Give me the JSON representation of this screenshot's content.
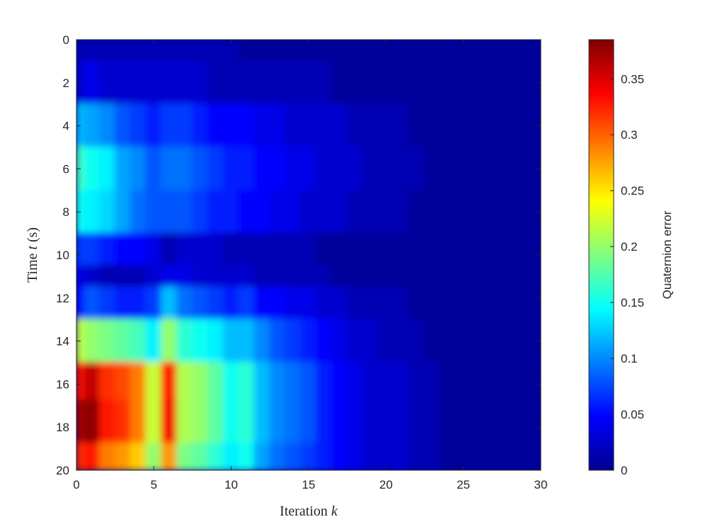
{
  "chart_data": {
    "type": "heatmap",
    "colormap": "jet",
    "title": "",
    "xlabel_text": "Iteration ",
    "xlabel_var": "k",
    "ylabel_text_pre": "Time ",
    "ylabel_var": "t",
    "ylabel_text_post": " (s)",
    "colorbar_label": "Quaternion error",
    "xlim": [
      0,
      30
    ],
    "ylim": [
      0,
      20
    ],
    "y_reversed": true,
    "clim": [
      0,
      0.385
    ],
    "x_ticks": [
      0,
      5,
      10,
      15,
      20,
      25,
      30
    ],
    "x_tick_labels": [
      "0",
      "5",
      "10",
      "15",
      "20",
      "25",
      "30"
    ],
    "y_ticks": [
      0,
      2,
      4,
      6,
      8,
      10,
      12,
      14,
      16,
      18,
      20
    ],
    "y_tick_labels": [
      "0",
      "2",
      "4",
      "6",
      "8",
      "10",
      "12",
      "14",
      "16",
      "18",
      "20"
    ],
    "colorbar_ticks": [
      0,
      0.05,
      0.1,
      0.15,
      0.2,
      0.25,
      0.3,
      0.35
    ],
    "colorbar_tick_labels": [
      "0",
      "0.05",
      "0.1",
      "0.15",
      "0.2",
      "0.25",
      "0.3",
      "0.35"
    ],
    "grid": false,
    "x": [
      0,
      1,
      2,
      3,
      4,
      5,
      6,
      7,
      8,
      9,
      10,
      11,
      12,
      13,
      14,
      15,
      16,
      17,
      18,
      19,
      20,
      21,
      22,
      23,
      24,
      25,
      26,
      27,
      28,
      29,
      30
    ],
    "y": [
      0,
      2,
      4,
      6,
      8,
      10,
      11,
      12,
      14,
      16,
      17.5,
      20
    ],
    "values": [
      [
        0.02,
        0.02,
        0.02,
        0.02,
        0.02,
        0.02,
        0.02,
        0.02,
        0.02,
        0.02,
        0.02,
        0.01,
        0.01,
        0.01,
        0.01,
        0.01,
        0.01,
        0.01,
        0.01,
        0.01,
        0.01,
        0.01,
        0.01,
        0.01,
        0.01,
        0.01,
        0.01,
        0.01,
        0.01,
        0.01,
        0.01
      ],
      [
        0.03,
        0.04,
        0.03,
        0.03,
        0.03,
        0.03,
        0.03,
        0.03,
        0.03,
        0.02,
        0.02,
        0.02,
        0.02,
        0.02,
        0.02,
        0.02,
        0.02,
        0.01,
        0.01,
        0.01,
        0.01,
        0.01,
        0.01,
        0.01,
        0.01,
        0.01,
        0.01,
        0.01,
        0.01,
        0.01,
        0.01
      ],
      [
        0.12,
        0.11,
        0.1,
        0.08,
        0.07,
        0.06,
        0.07,
        0.07,
        0.06,
        0.05,
        0.05,
        0.05,
        0.04,
        0.04,
        0.03,
        0.03,
        0.03,
        0.03,
        0.02,
        0.02,
        0.02,
        0.02,
        0.01,
        0.01,
        0.01,
        0.01,
        0.01,
        0.01,
        0.01,
        0.01,
        0.01
      ],
      [
        0.17,
        0.15,
        0.14,
        0.11,
        0.1,
        0.08,
        0.09,
        0.09,
        0.08,
        0.07,
        0.06,
        0.06,
        0.05,
        0.05,
        0.04,
        0.04,
        0.03,
        0.03,
        0.03,
        0.02,
        0.02,
        0.02,
        0.02,
        0.01,
        0.01,
        0.01,
        0.01,
        0.01,
        0.01,
        0.01,
        0.01
      ],
      [
        0.15,
        0.14,
        0.13,
        0.11,
        0.09,
        0.08,
        0.08,
        0.08,
        0.07,
        0.06,
        0.06,
        0.05,
        0.05,
        0.04,
        0.04,
        0.03,
        0.03,
        0.03,
        0.02,
        0.02,
        0.02,
        0.02,
        0.01,
        0.01,
        0.01,
        0.01,
        0.01,
        0.01,
        0.01,
        0.01,
        0.01
      ],
      [
        0.07,
        0.07,
        0.06,
        0.05,
        0.05,
        0.04,
        0.02,
        0.03,
        0.03,
        0.03,
        0.02,
        0.02,
        0.02,
        0.02,
        0.02,
        0.02,
        0.01,
        0.01,
        0.01,
        0.01,
        0.01,
        0.01,
        0.01,
        0.01,
        0.01,
        0.01,
        0.01,
        0.01,
        0.01,
        0.01,
        0.01
      ],
      [
        0.04,
        0.03,
        0.02,
        0.02,
        0.02,
        0.03,
        0.04,
        0.04,
        0.03,
        0.03,
        0.03,
        0.03,
        0.02,
        0.02,
        0.02,
        0.02,
        0.02,
        0.01,
        0.01,
        0.01,
        0.01,
        0.01,
        0.01,
        0.01,
        0.01,
        0.01,
        0.01,
        0.01,
        0.01,
        0.01,
        0.01
      ],
      [
        0.05,
        0.08,
        0.07,
        0.06,
        0.06,
        0.07,
        0.12,
        0.09,
        0.08,
        0.07,
        0.06,
        0.07,
        0.05,
        0.05,
        0.04,
        0.04,
        0.03,
        0.03,
        0.02,
        0.02,
        0.02,
        0.02,
        0.01,
        0.01,
        0.01,
        0.01,
        0.01,
        0.01,
        0.01,
        0.01,
        0.01
      ],
      [
        0.22,
        0.2,
        0.19,
        0.18,
        0.17,
        0.14,
        0.2,
        0.16,
        0.15,
        0.14,
        0.12,
        0.12,
        0.1,
        0.08,
        0.07,
        0.06,
        0.05,
        0.04,
        0.03,
        0.03,
        0.02,
        0.02,
        0.02,
        0.01,
        0.01,
        0.01,
        0.01,
        0.01,
        0.01,
        0.01,
        0.01
      ],
      [
        0.33,
        0.36,
        0.32,
        0.31,
        0.29,
        0.22,
        0.33,
        0.21,
        0.2,
        0.18,
        0.15,
        0.16,
        0.12,
        0.1,
        0.09,
        0.08,
        0.06,
        0.05,
        0.04,
        0.03,
        0.03,
        0.03,
        0.02,
        0.02,
        0.01,
        0.01,
        0.01,
        0.01,
        0.01,
        0.01,
        0.01
      ],
      [
        0.37,
        0.38,
        0.33,
        0.32,
        0.29,
        0.22,
        0.34,
        0.21,
        0.2,
        0.18,
        0.15,
        0.16,
        0.12,
        0.1,
        0.09,
        0.08,
        0.06,
        0.05,
        0.04,
        0.03,
        0.03,
        0.03,
        0.02,
        0.02,
        0.01,
        0.01,
        0.01,
        0.01,
        0.01,
        0.01,
        0.01
      ],
      [
        0.32,
        0.33,
        0.29,
        0.28,
        0.26,
        0.2,
        0.28,
        0.19,
        0.18,
        0.16,
        0.14,
        0.15,
        0.11,
        0.09,
        0.08,
        0.07,
        0.06,
        0.05,
        0.04,
        0.03,
        0.03,
        0.03,
        0.02,
        0.02,
        0.01,
        0.01,
        0.01,
        0.01,
        0.01,
        0.01,
        0.01
      ]
    ]
  }
}
